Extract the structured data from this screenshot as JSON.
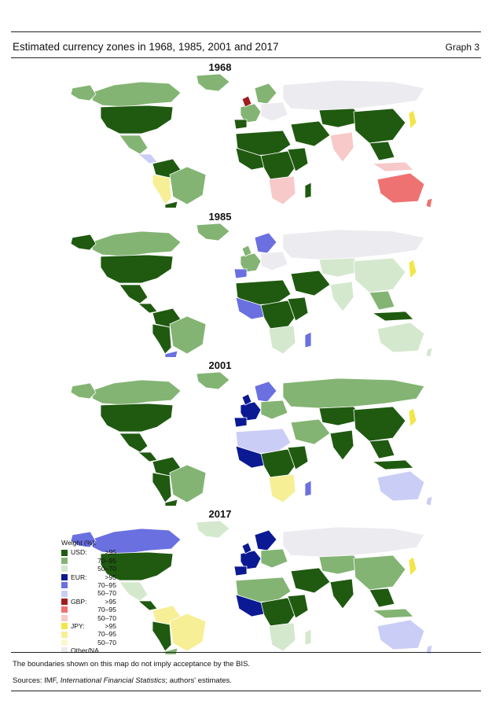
{
  "header": {
    "title": "Estimated currency zones in 1968, 1985, 2001 and 2017",
    "graph_label": "Graph 3"
  },
  "colors": {
    "usd_high": "#1f5a10",
    "usd_mid": "#83b473",
    "usd_low": "#d4e8cd",
    "eur_high": "#0b1a92",
    "eur_mid": "#6a70e0",
    "eur_low": "#cacdf6",
    "gbp_high": "#a01d1d",
    "gbp_mid": "#ef7272",
    "gbp_low": "#f7c9c9",
    "jpy_high": "#f1e64a",
    "jpy_mid": "#f6ef96",
    "jpy_low": "#fbf8cf",
    "other": "#ebebf0"
  },
  "panels": [
    {
      "year": "1968"
    },
    {
      "year": "1985"
    },
    {
      "year": "2001"
    },
    {
      "year": "2017"
    }
  ],
  "legend": {
    "title": "Weight (%):",
    "groups": [
      {
        "currency": "USD:",
        "levels": [
          ">95",
          "70–95",
          "50–70"
        ],
        "colors": [
          "#1f5a10",
          "#83b473",
          "#d4e8cd"
        ]
      },
      {
        "currency": "EUR:",
        "levels": [
          ">95",
          "70–95",
          "50–70"
        ],
        "colors": [
          "#0b1a92",
          "#6a70e0",
          "#cacdf6"
        ]
      },
      {
        "currency": "GBP:",
        "levels": [
          ">95",
          "70–95",
          "50–70"
        ],
        "colors": [
          "#a01d1d",
          "#ef7272",
          "#f7c9c9"
        ]
      },
      {
        "currency": "JPY:",
        "levels": [
          ">95",
          "70–95",
          "50–70"
        ],
        "colors": [
          "#f1e64a",
          "#f6ef96",
          "#fbf8cf"
        ]
      }
    ],
    "other": "Other/NA",
    "other_color": "#ebebf0"
  },
  "footer": {
    "disclaimer": "The boundaries shown on this map do not imply acceptance by the BIS.",
    "sources_prefix": "Sources: IMF, ",
    "sources_italic": "International Financial Statistics",
    "sources_suffix": "; authors' estimates."
  }
}
